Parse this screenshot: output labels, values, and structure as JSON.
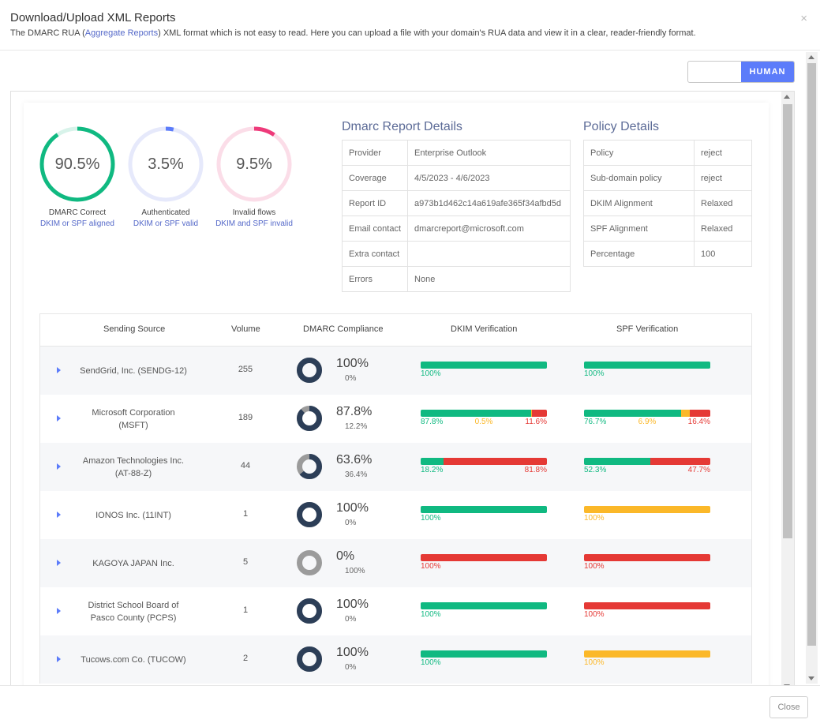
{
  "header": {
    "title": "Download/Upload XML Reports",
    "subtitle_pre": "The DMARC RUA (",
    "subtitle_link": "Aggregate Reports",
    "subtitle_post": ") XML format which is not easy to read. Here you can upload a file with your domain's RUA data and view it in a clear, reader-friendly format.",
    "close_icon": "×"
  },
  "toggle": {
    "right_label": "HUMAN"
  },
  "gauges": [
    {
      "value": "90.5%",
      "fraction": 0.905,
      "color": "#10b981",
      "track": "#d8f3ea",
      "caption": "DMARC Correct",
      "detail": "DKIM or SPF aligned"
    },
    {
      "value": "3.5%",
      "fraction": 0.035,
      "color": "#5c7cfa",
      "track": "#e6e9fb",
      "caption": "Authenticated",
      "detail": "DKIM or SPF valid"
    },
    {
      "value": "9.5%",
      "fraction": 0.095,
      "color": "#ee3a7a",
      "track": "#fbdde8",
      "caption": "Invalid flows",
      "detail": "DKIM and SPF invalid"
    }
  ],
  "report_details": {
    "title": "Dmarc Report Details",
    "rows": [
      {
        "label": "Provider",
        "value": "Enterprise Outlook"
      },
      {
        "label": "Coverage",
        "value": "4/5/2023 - 4/6/2023"
      },
      {
        "label": "Report ID",
        "value": "a973b1d462c14a619afe365f34afbd5d"
      },
      {
        "label": "Email contact",
        "value": "dmarcreport@microsoft.com"
      },
      {
        "label": "Extra contact",
        "value": ""
      },
      {
        "label": "Errors",
        "value": "None"
      }
    ]
  },
  "policy_details": {
    "title": "Policy Details",
    "rows": [
      {
        "label": "Policy",
        "value": "reject"
      },
      {
        "label": "Sub-domain policy",
        "value": "reject"
      },
      {
        "label": "DKIM Alignment",
        "value": "Relaxed"
      },
      {
        "label": "SPF Alignment",
        "value": "Relaxed"
      },
      {
        "label": "Percentage",
        "value": "100"
      }
    ]
  },
  "sources": {
    "headers": {
      "source": "Sending Source",
      "volume": "Volume",
      "compliance": "DMARC Compliance",
      "dkim": "DKIM Verification",
      "spf": "SPF Verification"
    },
    "colors": {
      "pass": "#10b981",
      "fail": "#e53935",
      "warn": "#fbb829",
      "donut_dark": "#2c3e57",
      "donut_light": "#9b9b9b"
    },
    "rows": [
      {
        "name": "SendGrid, Inc. (SENDG-12)",
        "volume": "255",
        "compliance": "100%",
        "non_compliance": "0%",
        "fraction": 1.0,
        "dkim": [
          {
            "pct": 100,
            "label": "100%",
            "type": "pass"
          }
        ],
        "spf": [
          {
            "pct": 100,
            "label": "100%",
            "type": "pass"
          }
        ]
      },
      {
        "name": "Microsoft Corporation (MSFT)",
        "volume": "189",
        "compliance": "87.8%",
        "non_compliance": "12.2%",
        "fraction": 0.878,
        "dkim": [
          {
            "pct": 87.8,
            "label": "87.8%",
            "type": "pass"
          },
          {
            "pct": 0.5,
            "label": "0.5%",
            "type": "warn"
          },
          {
            "pct": 11.6,
            "label": "11.6%",
            "type": "fail"
          }
        ],
        "spf": [
          {
            "pct": 76.7,
            "label": "76.7%",
            "type": "pass"
          },
          {
            "pct": 6.9,
            "label": "6.9%",
            "type": "warn"
          },
          {
            "pct": 16.4,
            "label": "16.4%",
            "type": "fail"
          }
        ]
      },
      {
        "name": "Amazon Technologies Inc. (AT-88-Z)",
        "volume": "44",
        "compliance": "63.6%",
        "non_compliance": "36.4%",
        "fraction": 0.636,
        "dkim": [
          {
            "pct": 18.2,
            "label": "18.2%",
            "type": "pass"
          },
          {
            "pct": 81.8,
            "label": "81.8%",
            "type": "fail"
          }
        ],
        "spf": [
          {
            "pct": 52.3,
            "label": "52.3%",
            "type": "pass"
          },
          {
            "pct": 47.7,
            "label": "47.7%",
            "type": "fail"
          }
        ]
      },
      {
        "name": "IONOS Inc. (11INT)",
        "volume": "1",
        "compliance": "100%",
        "non_compliance": "0%",
        "fraction": 1.0,
        "dkim": [
          {
            "pct": 100,
            "label": "100%",
            "type": "pass"
          }
        ],
        "spf": [
          {
            "pct": 100,
            "label": "100%",
            "type": "warn"
          }
        ]
      },
      {
        "name": "KAGOYA JAPAN Inc.",
        "volume": "5",
        "compliance": "0%",
        "non_compliance": "100%",
        "fraction": 0.0,
        "dkim": [
          {
            "pct": 100,
            "label": "100%",
            "type": "fail"
          }
        ],
        "spf": [
          {
            "pct": 100,
            "label": "100%",
            "type": "fail"
          }
        ]
      },
      {
        "name": "District School Board of Pasco County (PCPS)",
        "volume": "1",
        "compliance": "100%",
        "non_compliance": "0%",
        "fraction": 1.0,
        "dkim": [
          {
            "pct": 100,
            "label": "100%",
            "type": "pass"
          }
        ],
        "spf": [
          {
            "pct": 100,
            "label": "100%",
            "type": "fail"
          }
        ]
      },
      {
        "name": "Tucows.com Co. (TUCOW)",
        "volume": "2",
        "compliance": "100%",
        "non_compliance": "0%",
        "fraction": 1.0,
        "dkim": [
          {
            "pct": 100,
            "label": "100%",
            "type": "pass"
          }
        ],
        "spf": [
          {
            "pct": 100,
            "label": "100%",
            "type": "warn"
          }
        ]
      }
    ]
  },
  "footer": {
    "close_label": "Close"
  }
}
